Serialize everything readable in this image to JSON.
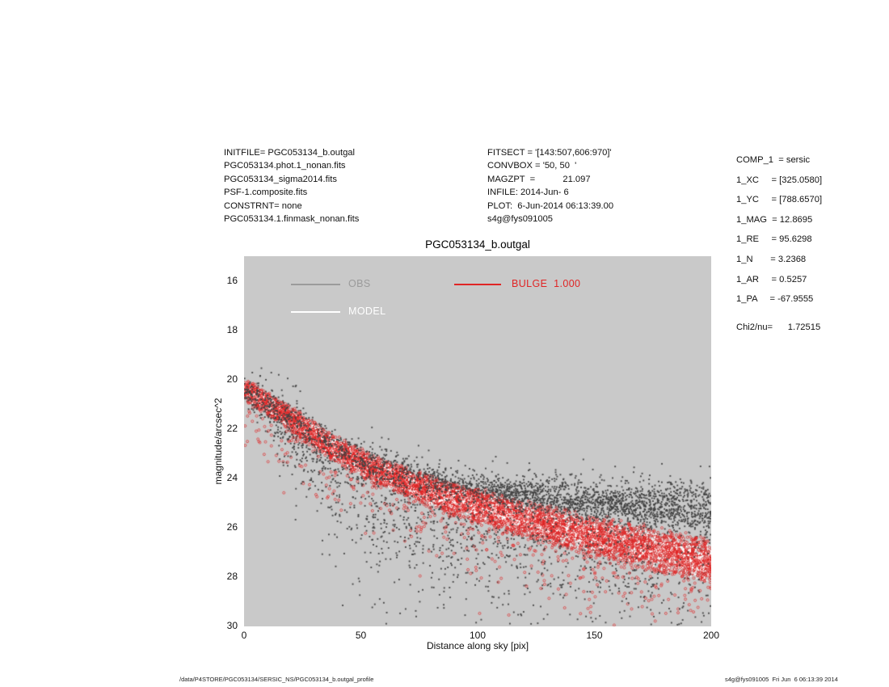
{
  "header": {
    "left_lines": [
      "INITFILE= PGC053134_b.outgal",
      "PGC053134.phot.1_nonan.fits",
      "PGC053134_sigma2014.fits",
      "PSF-1.composite.fits",
      "CONSTRNT= none",
      "PGC053134.1.finmask_nonan.fits"
    ],
    "mid_lines": [
      "FITSECT = '[143:507,606:970]'",
      "CONVBOX = '50, 50  '",
      "MAGZPT  =           21.097",
      "INFILE: 2014-Jun- 6",
      "PLOT:  6-Jun-2014 06:13:39.00",
      "s4g@fys091005"
    ],
    "right_params": [
      "COMP_1  = sersic",
      "1_XC     = [325.0580]",
      "1_YC     = [788.6570]",
      "1_MAG  = 12.8695",
      "1_RE     = 95.6298",
      "1_N       = 3.2368",
      "1_AR     = 0.5257",
      "1_PA     = -67.9555"
    ],
    "chi2_line": "Chi2/nu=      1.72515"
  },
  "footer": {
    "left": "/data/P4STORE/PGC053134/SERSIC_NS/PGC053134_b.outgal_profile",
    "right": "s4g@fys091005  Fri Jun  6 06:13:39 2014"
  },
  "chart_data": {
    "type": "scatter",
    "title": "PGC053134_b.outgal",
    "xlabel": "Distance along sky [pix]",
    "ylabel": "magnitude/arcsec^2",
    "xlim": [
      0,
      200
    ],
    "ylim": [
      15,
      30
    ],
    "y_axis_inverted": true,
    "xticks": [
      0,
      50,
      100,
      150,
      200
    ],
    "yticks": [
      16,
      18,
      20,
      22,
      24,
      26,
      28,
      30
    ],
    "grid": false,
    "plot_bg": "#c9c9c9",
    "legend_position": "top-inside",
    "legend": [
      {
        "label": "OBS",
        "color": "#9b9b9b"
      },
      {
        "label": "MODEL",
        "color": "#ffffff"
      },
      {
        "label": "BULGE  1.000",
        "color": "#e02525"
      }
    ],
    "series": [
      {
        "name": "OBS",
        "marker": "square",
        "color": "#414141",
        "n_points": 5200,
        "profile_x": [
          0,
          10,
          20,
          35,
          50,
          70,
          90,
          110,
          130,
          150,
          175,
          200
        ],
        "profile_mag": [
          20.34,
          20.95,
          21.55,
          22.5,
          23.25,
          23.95,
          24.35,
          24.62,
          24.82,
          24.95,
          25.07,
          25.16
        ],
        "core_sigma_inner": 0.22,
        "core_sigma_outer": 0.5,
        "faint_tail_sigma": 2.3,
        "faint_tail_frac": 0.37
      },
      {
        "name": "BULGE",
        "marker": "ring",
        "color": "#e02525",
        "n_points": 6800,
        "profile_x": [
          0,
          10,
          20,
          35,
          50,
          70,
          90,
          110,
          130,
          150,
          175,
          200
        ],
        "profile_mag": [
          20.35,
          21.0,
          21.6,
          22.6,
          23.4,
          24.2,
          24.9,
          25.4,
          25.9,
          26.35,
          26.9,
          27.45
        ],
        "band_halfwidth_inner": 0.5,
        "band_halfwidth_outer": 1.05
      },
      {
        "name": "MODEL",
        "marker": "dot",
        "color": "#ffffff",
        "n_points": 4200,
        "profile_x": [
          0,
          10,
          20,
          35,
          50,
          70,
          90,
          110,
          130,
          150,
          175,
          200
        ],
        "profile_mag": [
          20.35,
          21.0,
          21.6,
          22.6,
          23.4,
          24.2,
          24.9,
          25.4,
          25.9,
          26.35,
          26.9,
          27.45
        ],
        "band_halfwidth_inner": 0.4,
        "band_halfwidth_outer": 0.84
      }
    ]
  }
}
